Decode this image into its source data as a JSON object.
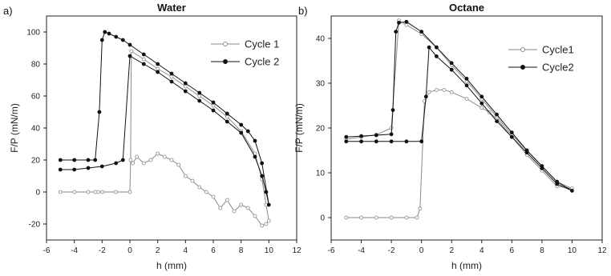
{
  "chart_data": [
    {
      "type": "line",
      "panel_label": "a)",
      "title": "Water",
      "xlabel": "h (mm)",
      "ylabel": "F/P (mN/m)",
      "xlim": [
        -6,
        12
      ],
      "ylim": [
        -30,
        110
      ],
      "xticks": [
        "-6",
        "-4",
        "-2",
        "0",
        "2",
        "4",
        "6",
        "8",
        "10",
        "12"
      ],
      "yticks": [
        "-20",
        "0",
        "20",
        "40",
        "60",
        "80",
        "100"
      ],
      "legend_position": "top-right",
      "series": [
        {
          "name": "Cycle 1",
          "marker": "open-circle",
          "color": "#8a8a8a",
          "x": [
            -5,
            -4,
            -3,
            -2.5,
            -2.3,
            -2,
            -1,
            0,
            0.05,
            0.1,
            1,
            2,
            3,
            4,
            5,
            6,
            7,
            8,
            9,
            9.5,
            9.8,
            10,
            9.8,
            9.5,
            9,
            8.5,
            8,
            7.5,
            7,
            6.5,
            6,
            5.5,
            5,
            4.5,
            4,
            3.5,
            3,
            2.5,
            2,
            1.5,
            1,
            0.5,
            0.2
          ],
          "y": [
            0,
            0,
            0,
            0,
            0,
            0,
            0,
            0,
            20,
            88,
            83,
            77,
            72,
            66,
            60,
            54,
            47,
            38,
            24,
            8,
            -8,
            -18,
            -20,
            -21,
            -15,
            -10,
            -8,
            -12,
            -5,
            -10,
            -3,
            0,
            3,
            7,
            10,
            17,
            20,
            22,
            24,
            20,
            18,
            22,
            18
          ]
        },
        {
          "name": "Cycle 2",
          "marker": "filled-circle",
          "color": "#111111",
          "x": [
            -5,
            -4,
            -3,
            -2.5,
            -2.2,
            -2,
            -1.8,
            -1.5,
            -1,
            -0.5,
            0,
            1,
            2,
            3,
            4,
            5,
            6,
            7,
            8,
            8.5,
            9,
            9.5,
            10,
            9.8,
            9.5,
            9,
            8,
            7,
            6,
            5,
            4,
            3,
            2,
            1,
            0,
            -0.5,
            -1,
            -2,
            -3,
            -4,
            -5
          ],
          "y": [
            20,
            20,
            20,
            20,
            50,
            95,
            100,
            99,
            97,
            95,
            92,
            86,
            80,
            74,
            68,
            62,
            56,
            49,
            42,
            38,
            32,
            18,
            -8,
            0,
            10,
            22,
            37,
            44,
            51,
            57,
            63,
            69,
            75,
            80,
            85,
            20,
            18,
            16,
            15,
            14,
            14
          ]
        }
      ]
    },
    {
      "type": "line",
      "panel_label": "b)",
      "title": "Octane",
      "xlabel": "h (mm)",
      "ylabel": "F/P (mN/m)",
      "xlim": [
        -6,
        12
      ],
      "ylim": [
        -5,
        45
      ],
      "xticks": [
        "-6",
        "-4",
        "-2",
        "0",
        "2",
        "4",
        "6",
        "8",
        "10",
        "12"
      ],
      "yticks": [
        "0",
        "10",
        "20",
        "30",
        "40"
      ],
      "legend_position": "top-right",
      "series": [
        {
          "name": "Cycle1",
          "marker": "open-circle",
          "color": "#8a8a8a",
          "x": [
            -5,
            -4,
            -3,
            -2,
            -1,
            -0.3,
            -0.1,
            0.2,
            0.5,
            1,
            1.5,
            2,
            3,
            4,
            4.5,
            5,
            6,
            7,
            8,
            9,
            10,
            9,
            8,
            7,
            6,
            5,
            4,
            3,
            2,
            1,
            0,
            -1,
            -1.5,
            -2,
            -3,
            -4,
            -5
          ],
          "y": [
            0,
            0,
            0,
            0,
            0,
            0,
            2,
            26,
            28,
            28.5,
            28.5,
            28,
            26.5,
            24.5,
            23.5,
            22,
            18,
            14,
            10.5,
            7,
            6.5,
            8,
            11.5,
            15,
            18.5,
            22.5,
            26.5,
            30.5,
            34,
            38,
            41,
            43,
            44,
            20,
            18.5,
            18,
            17.5
          ]
        },
        {
          "name": "Cycle2",
          "marker": "filled-circle",
          "color": "#111111",
          "x": [
            -5,
            -4,
            -3,
            -2,
            -1.9,
            -1.7,
            -1.5,
            -1,
            0,
            1,
            2,
            3,
            4,
            5,
            6,
            7,
            8,
            9,
            10,
            9,
            8,
            7,
            6,
            5,
            4,
            3,
            2,
            1,
            0.5,
            0.3,
            0,
            -1,
            -2,
            -3,
            -4,
            -5
          ],
          "y": [
            18,
            18.2,
            18.4,
            18.6,
            24,
            41.5,
            43.5,
            43.7,
            41.5,
            38,
            34.5,
            31,
            27,
            23,
            19,
            15,
            11.5,
            8,
            6,
            7.5,
            11,
            14.5,
            18,
            21.5,
            25.5,
            29.5,
            33,
            36,
            38,
            27,
            17,
            17,
            17,
            17,
            17,
            17
          ]
        }
      ]
    }
  ]
}
